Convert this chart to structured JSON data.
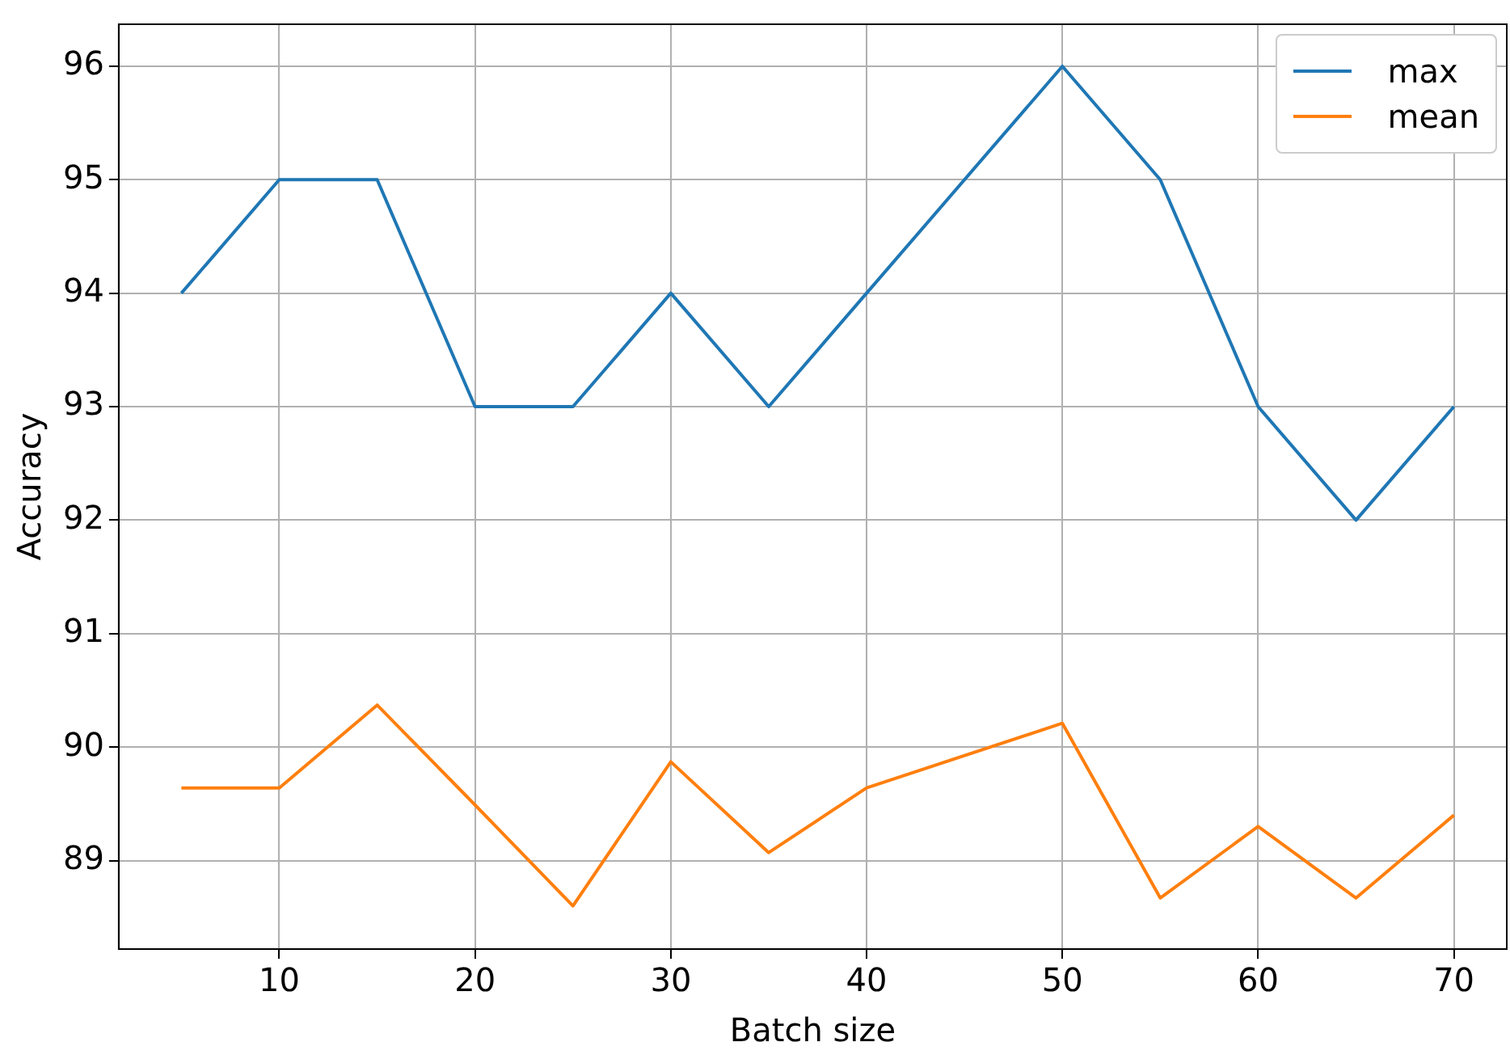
{
  "chart_data": {
    "type": "line",
    "xlabel": "Batch size",
    "ylabel": "Accuracy",
    "x": [
      5,
      10,
      15,
      20,
      25,
      30,
      35,
      40,
      50,
      55,
      60,
      65,
      70
    ],
    "series": [
      {
        "name": "max",
        "color": "#1f77b4",
        "values": [
          94,
          95,
          95,
          93,
          93,
          94,
          93,
          94,
          96,
          95,
          93,
          92,
          93
        ]
      },
      {
        "name": "mean",
        "color": "#ff7f0e",
        "values": [
          89.64,
          89.64,
          90.37,
          89.49,
          88.6,
          89.87,
          89.07,
          89.64,
          90.21,
          88.67,
          89.3,
          88.67,
          89.4
        ]
      }
    ],
    "xlim": [
      1.8,
      72.7
    ],
    "ylim": [
      88.22,
      96.37
    ],
    "xticks": [
      10,
      20,
      30,
      40,
      50,
      60,
      70
    ],
    "yticks": [
      89,
      90,
      91,
      92,
      93,
      94,
      95,
      96
    ],
    "grid": true,
    "legend": "top right",
    "marker": "none",
    "line_style": "solid"
  }
}
